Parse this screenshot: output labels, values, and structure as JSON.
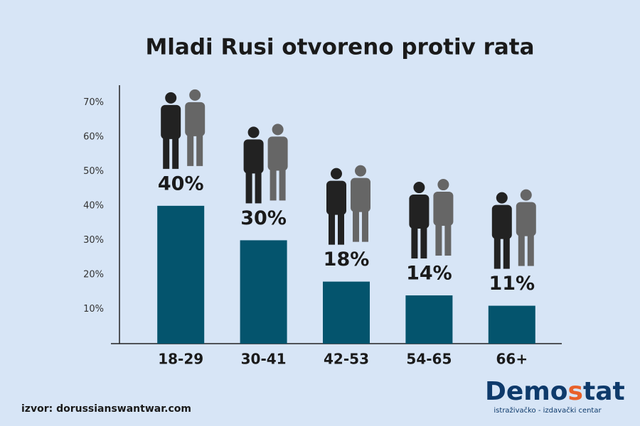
{
  "chart_data": {
    "type": "bar",
    "title": "Mladi Rusi otvoreno protiv rata",
    "categories": [
      "18-29",
      "30-41",
      "42-53",
      "54-65",
      "66+"
    ],
    "values": [
      40,
      30,
      18,
      14,
      11
    ],
    "value_labels": [
      "40%",
      "30%",
      "18%",
      "14%",
      "11%"
    ],
    "color": "#04546d",
    "ylim": [
      0,
      75
    ],
    "yticks": [
      {
        "value": 10,
        "label": "10%"
      },
      {
        "value": 20,
        "label": "20%"
      },
      {
        "value": 30,
        "label": "30%"
      },
      {
        "value": 40,
        "label": "40%"
      },
      {
        "value": 50,
        "label": "50%"
      },
      {
        "value": 60,
        "label": "60%"
      },
      {
        "value": 70,
        "label": "70%"
      }
    ],
    "grid": false,
    "source": "izvor: dorussianswantwar.com",
    "logo": {
      "parts": [
        "Demo",
        "s",
        "tat"
      ],
      "tagline": "istraživačko - izdavački centar"
    }
  }
}
